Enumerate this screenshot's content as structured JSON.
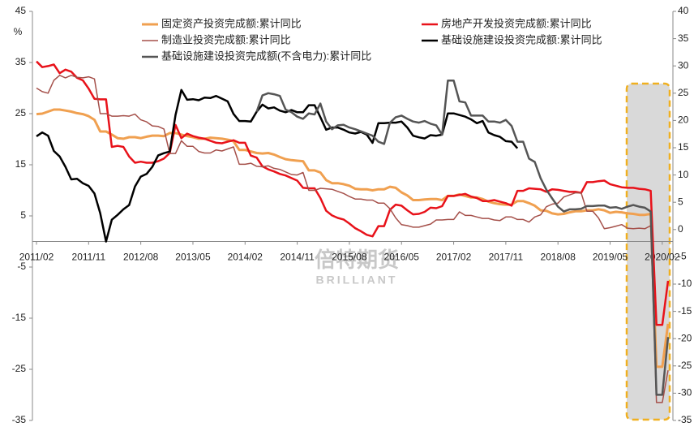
{
  "chart_data": {
    "type": "line",
    "y_unit": "%",
    "watermark": [
      "倍特期货",
      "BRILLIANT"
    ],
    "categories": [
      "2011/02",
      null,
      null,
      null,
      null,
      null,
      null,
      null,
      null,
      "2011/11",
      null,
      null,
      null,
      null,
      null,
      null,
      null,
      null,
      "2012/08",
      null,
      null,
      null,
      null,
      null,
      null,
      null,
      null,
      "2013/05",
      null,
      null,
      null,
      null,
      null,
      null,
      null,
      null,
      "2014/02",
      null,
      null,
      null,
      null,
      null,
      null,
      null,
      null,
      "2014/11",
      null,
      null,
      null,
      null,
      null,
      null,
      null,
      null,
      "2015/08",
      null,
      null,
      null,
      null,
      null,
      null,
      null,
      null,
      "2016/05",
      null,
      null,
      null,
      null,
      null,
      null,
      null,
      null,
      "2017/02",
      null,
      null,
      null,
      null,
      null,
      null,
      null,
      null,
      "2017/11",
      null,
      null,
      null,
      null,
      null,
      null,
      null,
      null,
      "2018/08",
      null,
      null,
      null,
      null,
      null,
      null,
      null,
      null,
      "2019/05",
      null,
      null,
      null,
      null,
      null,
      null,
      null,
      null,
      "2020/02",
      null
    ],
    "ylim": [
      -35,
      45
    ],
    "yticks": [
      -35,
      -25,
      -15,
      -5,
      5,
      15,
      25,
      35,
      45
    ],
    "y2lim": [
      -35,
      40
    ],
    "y2ticks": [
      -35,
      -30,
      -25,
      -20,
      -15,
      -10,
      -5,
      0,
      5,
      10,
      15,
      20,
      25,
      30,
      35,
      40
    ],
    "series": [
      {
        "name": "固定资产投资完成额:累计同比",
        "color": "#f0a050",
        "values": [
          24.9,
          25.0,
          25.4,
          25.8,
          25.8,
          25.6,
          25.4,
          25.1,
          24.9,
          24.5,
          23.8,
          21.5,
          21.5,
          20.9,
          20.2,
          20.1,
          20.4,
          20.4,
          20.2,
          20.5,
          20.7,
          20.7,
          20.6,
          21.2,
          21.2,
          20.9,
          20.6,
          20.4,
          20.1,
          20.1,
          20.3,
          20.2,
          20.1,
          19.9,
          19.6,
          17.9,
          17.9,
          17.6,
          17.3,
          17.2,
          17.3,
          17.0,
          16.5,
          16.1,
          15.9,
          15.8,
          15.7,
          13.9,
          13.9,
          13.5,
          12.0,
          11.4,
          11.4,
          11.2,
          10.9,
          10.3,
          10.2,
          10.2,
          10.0,
          10.2,
          10.2,
          10.7,
          10.5,
          9.6,
          9.0,
          8.1,
          8.1,
          8.2,
          8.3,
          8.3,
          8.1,
          8.9,
          8.9,
          9.2,
          8.9,
          8.6,
          8.6,
          8.3,
          7.8,
          7.5,
          7.3,
          7.2,
          7.2,
          7.9,
          7.9,
          7.5,
          7.0,
          6.1,
          6.0,
          5.5,
          5.3,
          5.4,
          5.7,
          5.9,
          5.9,
          6.1,
          6.1,
          6.3,
          6.1,
          5.6,
          5.8,
          5.7,
          5.5,
          5.4,
          5.2,
          5.2,
          5.4,
          -24.5,
          -24.5,
          -16.1
        ]
      },
      {
        "name": "房地产开发投资完成额:累计同比",
        "color": "#e8121a",
        "values": [
          35.2,
          34.1,
          34.3,
          34.6,
          32.9,
          33.6,
          33.2,
          32.0,
          31.5,
          29.9,
          27.9,
          27.8,
          27.8,
          18.5,
          18.7,
          18.5,
          16.6,
          15.4,
          15.6,
          15.4,
          15.4,
          15.7,
          16.2,
          17.3,
          22.8,
          20.2,
          21.1,
          20.6,
          20.3,
          20.1,
          19.7,
          19.3,
          19.2,
          19.5,
          19.8,
          19.3,
          19.3,
          16.8,
          16.4,
          14.7,
          14.1,
          13.7,
          13.2,
          12.9,
          12.4,
          11.9,
          10.5,
          10.4,
          10.4,
          8.5,
          6.0,
          5.1,
          4.6,
          4.3,
          3.5,
          2.6,
          2.0,
          1.3,
          1.0,
          3.0,
          3.0,
          6.2,
          7.2,
          7.0,
          6.1,
          5.3,
          5.4,
          5.8,
          6.6,
          6.5,
          6.9,
          8.9,
          8.9,
          9.1,
          9.3,
          8.8,
          8.5,
          7.9,
          7.9,
          8.1,
          7.8,
          7.5,
          7.0,
          9.9,
          9.9,
          10.4,
          10.3,
          10.2,
          9.7,
          10.2,
          10.1,
          9.9,
          9.7,
          9.7,
          9.5,
          11.6,
          11.6,
          11.8,
          11.9,
          11.2,
          10.9,
          10.6,
          10.5,
          10.5,
          10.3,
          10.2,
          9.9,
          -16.3,
          -16.3,
          -7.7
        ]
      },
      {
        "name": "制造业投资完成额:累计同比",
        "color": "#a5504a",
        "values": [
          30.0,
          29.3,
          29.0,
          31.5,
          32.5,
          32.0,
          32.5,
          32.1,
          32.0,
          32.2,
          31.8,
          25.0,
          25.0,
          24.5,
          24.5,
          24.6,
          24.5,
          24.9,
          23.8,
          23.4,
          22.6,
          22.5,
          22.0,
          17.2,
          17.2,
          19.7,
          18.6,
          18.6,
          17.6,
          17.3,
          17.3,
          17.9,
          17.7,
          18.1,
          18.5,
          15.1,
          15.1,
          15.3,
          14.7,
          14.6,
          14.8,
          14.3,
          14.1,
          13.6,
          13.1,
          13.0,
          13.5,
          10.0,
          10.0,
          10.4,
          10.3,
          10.2,
          9.8,
          9.4,
          8.8,
          8.3,
          8.3,
          8.1,
          8.1,
          7.5,
          7.5,
          6.4,
          4.6,
          3.3,
          3.1,
          2.8,
          2.8,
          3.1,
          3.4,
          4.2,
          4.2,
          4.3,
          4.3,
          5.8,
          5.1,
          5.1,
          4.8,
          4.5,
          4.5,
          4.2,
          4.1,
          4.8,
          4.8,
          4.3,
          4.3,
          3.8,
          4.8,
          5.2,
          6.8,
          7.3,
          7.5,
          8.7,
          9.1,
          9.5,
          9.5,
          5.9,
          5.9,
          4.6,
          2.5,
          2.7,
          3.0,
          3.3,
          2.6,
          2.5,
          2.6,
          2.5,
          3.1,
          -31.5,
          -31.5,
          -25.2
        ]
      },
      {
        "name": "基础设施建设投资完成额:累计同比",
        "color": "#000000",
        "axis": "y2",
        "values": [
          17.1,
          17.8,
          17.2,
          14.4,
          13.4,
          11.5,
          9.2,
          9.3,
          8.5,
          8.0,
          6.6,
          3.0,
          -2.2,
          1.8,
          2.7,
          3.7,
          4.5,
          7.9,
          9.7,
          10.2,
          11.5,
          13.6,
          14.0,
          14.3,
          21.0,
          25.6,
          23.8,
          23.9,
          23.7,
          24.2,
          24.1,
          24.5,
          24.0,
          23.5,
          21.2,
          19.9,
          19.9,
          19.8,
          21.6,
          22.9,
          22.2,
          22.4,
          21.8,
          21.5,
          21.9,
          21.5,
          21.5,
          22.8,
          22.8,
          20.6,
          18.3,
          18.7,
          18.7,
          18.3,
          17.8,
          17.6,
          17.9,
          17.4,
          15.9,
          19.5,
          19.5,
          19.6,
          19.6,
          19.8,
          18.7,
          17.2,
          16.9,
          16.7,
          17.3,
          17.2,
          17.4,
          21.3,
          21.3,
          21.0,
          20.7,
          20.2,
          19.5,
          19.9,
          17.8,
          17.3,
          17.0,
          16.2,
          16.1,
          14.9,
          null,
          null,
          null,
          null,
          null,
          null,
          null,
          null,
          null,
          null,
          null,
          null,
          null,
          null,
          null,
          null,
          null,
          null,
          null,
          null,
          null,
          null,
          null,
          null,
          null,
          null
        ]
      },
      {
        "name": "基础设施建设投资完成额(不含电力):累计同比",
        "color": "#555555",
        "axis": "y2",
        "values": [
          null,
          null,
          null,
          null,
          null,
          null,
          null,
          null,
          null,
          null,
          null,
          null,
          null,
          null,
          null,
          null,
          null,
          null,
          null,
          null,
          null,
          null,
          null,
          null,
          null,
          null,
          null,
          null,
          null,
          null,
          null,
          null,
          null,
          null,
          null,
          null,
          null,
          null,
          21.6,
          24.6,
          25.0,
          24.8,
          24.5,
          22.0,
          21.5,
          20.7,
          20.3,
          21.3,
          21.1,
          23.1,
          19.8,
          18.4,
          19.1,
          19.2,
          18.7,
          18.4,
          18.0,
          17.6,
          17.2,
          16.1,
          15.7,
          19.6,
          20.6,
          20.9,
          20.3,
          19.8,
          19.6,
          19.9,
          19.4,
          19.1,
          17.4,
          27.3,
          27.3,
          23.5,
          23.3,
          20.9,
          20.9,
          20.9,
          19.8,
          19.8,
          19.6,
          20.1,
          19.0,
          16.1,
          16.1,
          13.0,
          12.4,
          9.4,
          7.3,
          5.7,
          4.2,
          3.3,
          3.7,
          3.7,
          3.8,
          4.3,
          4.3,
          4.4,
          4.4,
          4.0,
          4.1,
          3.8,
          4.2,
          4.5,
          4.2,
          4.0,
          3.3,
          -30.3,
          -30.3,
          -19.7
        ]
      }
    ]
  }
}
